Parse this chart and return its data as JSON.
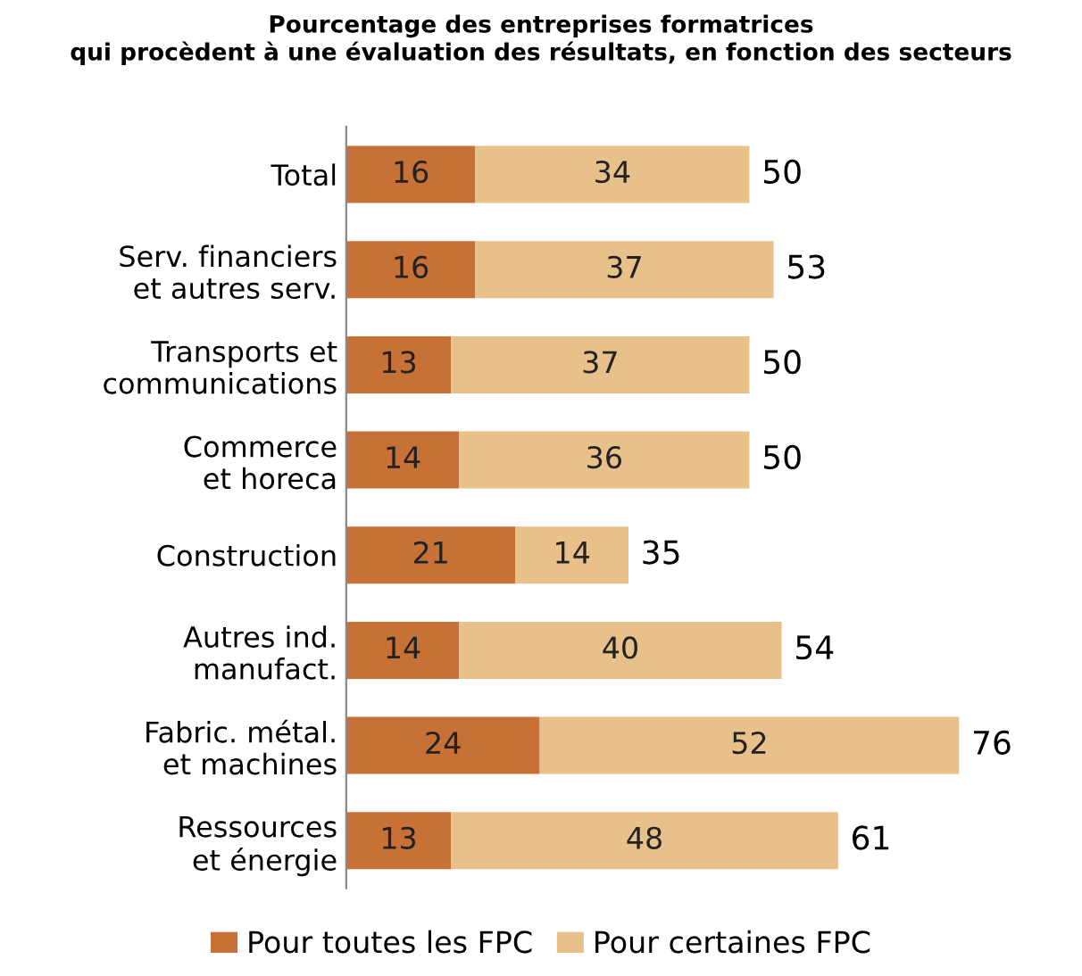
{
  "chart_data": {
    "type": "bar",
    "orientation": "horizontal",
    "stacked": true,
    "title": "Pourcentage des entreprises formatrices\nqui procèdent à une évaluation des résultats, en fonction des secteurs",
    "categories": [
      "Total",
      "Serv. financiers\net autres serv.",
      "Transports et\ncommunications",
      "Commerce\net horeca",
      "Construction",
      "Autres ind.\nmanufact.",
      "Fabric. métal.\net machines",
      "Ressources\net énergie"
    ],
    "series": [
      {
        "name": "Pour toutes les FPC",
        "color": "#c87137",
        "values": [
          16,
          16,
          13,
          14,
          21,
          14,
          24,
          13
        ]
      },
      {
        "name": "Pour certaines FPC",
        "color": "#e8c08a",
        "values": [
          34,
          37,
          37,
          36,
          14,
          40,
          52,
          48
        ]
      }
    ],
    "data_labels": true,
    "totals": [
      "50",
      "53",
      "50",
      "50",
      "35",
      "54",
      "76",
      "61"
    ],
    "legend": "bottom"
  }
}
